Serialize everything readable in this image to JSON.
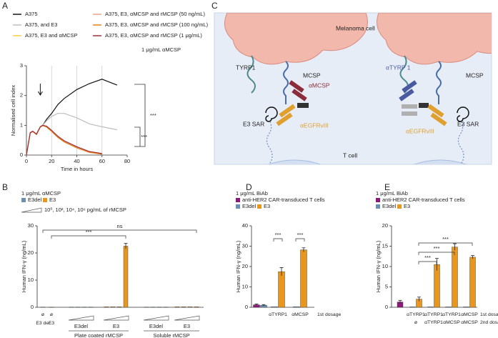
{
  "chart_data": [
    {
      "type": "line",
      "panel": "A",
      "ylabel": "Normalised cell index",
      "xlabel": "Time in hours",
      "x": [
        0,
        3,
        5,
        8,
        11,
        13,
        16,
        20,
        25,
        30,
        40,
        50,
        60,
        66,
        72
      ],
      "xlim": [
        0,
        80
      ],
      "xticks": [
        0,
        20,
        40,
        60,
        80
      ],
      "ylim": [
        0,
        3
      ],
      "yticks": [
        0,
        1,
        2,
        3
      ],
      "grid": "x",
      "series": [
        {
          "name": "A375",
          "color": "#111111",
          "values": [
            0,
            0.75,
            0.8,
            0.7,
            0.95,
            1.0,
            1.2,
            1.4,
            1.7,
            1.9,
            2.2,
            2.4,
            2.55,
            2.45,
            2.35
          ]
        },
        {
          "name": "A375, and E3",
          "color": "#bdbdbd",
          "values": [
            0,
            0.75,
            0.8,
            0.7,
            0.95,
            1.0,
            1.15,
            1.3,
            1.4,
            1.4,
            1.25,
            1.05,
            0.95,
            0.9,
            0.85
          ]
        },
        {
          "name": "A375, E3 and αMCSP",
          "color": "#f2cf4a",
          "values": [
            0,
            0.75,
            0.8,
            0.7,
            0.95,
            1.0,
            0.95,
            0.8,
            0.6,
            0.45,
            0.25,
            0.1,
            0.03,
            null,
            null
          ]
        },
        {
          "name": "A375, E3, αMCSP and rMCSP (50 ng/mL)",
          "color": "#f0a58a",
          "values": [
            0,
            0.76,
            0.81,
            0.71,
            0.96,
            1.0,
            0.96,
            0.82,
            0.62,
            0.47,
            0.27,
            0.11,
            0.04,
            null,
            null
          ]
        },
        {
          "name": "A375, E3, αMCSP and rMCSP (100 ng/mL)",
          "color": "#e8821e",
          "values": [
            0,
            0.74,
            0.79,
            0.69,
            0.94,
            0.99,
            0.94,
            0.79,
            0.59,
            0.44,
            0.24,
            0.09,
            0.03,
            null,
            null
          ]
        },
        {
          "name": "A375, E3, αMCSP and rMCSP (1 μg/mL)",
          "color": "#a0303a",
          "values": [
            0,
            0.75,
            0.8,
            0.7,
            0.95,
            1.0,
            0.97,
            0.83,
            0.63,
            0.48,
            0.28,
            0.12,
            0.05,
            null,
            null
          ]
        }
      ],
      "annotations": [
        "1 μg/mL αMCSP",
        "***",
        "***"
      ]
    },
    {
      "type": "bar",
      "panel": "B",
      "subtitle": "1 μg/mL αMCSP",
      "dose_label": "10⁰, 10², 10⁴, 10⁶ pg/mL of rMCSP",
      "ylabel": "Human IFN-γ (ng/mL)",
      "ylim": [
        0,
        30
      ],
      "yticks": [
        0,
        10,
        20,
        30
      ],
      "categories": [
        "ø",
        "ø",
        null,
        null,
        null,
        null,
        null,
        null,
        null,
        null,
        null,
        null,
        null,
        null,
        null,
        null,
        null,
        null
      ],
      "category_sublabels": [
        "E3 del",
        "E3",
        null,
        null,
        null,
        null,
        null,
        null,
        null,
        null,
        null,
        null,
        null,
        null,
        null,
        null,
        null,
        null
      ],
      "x_groups": [
        "E3del",
        "E3",
        "E3del",
        "E3"
      ],
      "x_supergroups": [
        "Plate coated rMCSP",
        "Soluble rMCSP"
      ],
      "series": [
        {
          "name": "E3del",
          "color": "#6b8fb5",
          "values": [
            0.1,
            null,
            0.1,
            0.1,
            0.1,
            0.1,
            null,
            null,
            null,
            null,
            0.1,
            0.1,
            0.1,
            0.1,
            null,
            null,
            null,
            null
          ],
          "errors": [
            null,
            null,
            null,
            null,
            null,
            null,
            null,
            null,
            null,
            null,
            null,
            null,
            null,
            null,
            null,
            null,
            null,
            null
          ]
        },
        {
          "name": "E3",
          "color": "#e8961e",
          "values": [
            null,
            0.1,
            null,
            null,
            null,
            null,
            0.2,
            0.2,
            0.2,
            22.5,
            null,
            null,
            null,
            null,
            0.2,
            0.2,
            0.2,
            0.2
          ],
          "errors": [
            null,
            null,
            null,
            null,
            null,
            null,
            null,
            null,
            null,
            1.0,
            null,
            null,
            null,
            null,
            null,
            null,
            null,
            null
          ]
        }
      ],
      "significance": [
        "***",
        "ns"
      ]
    },
    {
      "type": "bar",
      "panel": "D",
      "subtitle": "1 μg/mL BiAb",
      "ylabel": "Human IFN-γ (ng/mL)",
      "ylim": [
        0,
        40
      ],
      "yticks": [
        0,
        10,
        20,
        30,
        40
      ],
      "categories": [
        null,
        "αTYRP1",
        "αMCSP"
      ],
      "dosage_labels": [
        "1st dosage"
      ],
      "series": [
        {
          "name": "anti-HER2 CAR-transduced T cells",
          "color": "#8b1a7a",
          "values": [
            1.2,
            null,
            null
          ],
          "errors": [
            0.4,
            null,
            null
          ]
        },
        {
          "name": "E3del",
          "color": "#6b8fb5",
          "values": [
            1.0,
            0.3,
            0.3
          ],
          "errors": [
            0.3,
            null,
            null
          ]
        },
        {
          "name": "E3",
          "color": "#e8961e",
          "values": [
            null,
            17.5,
            28.2
          ],
          "errors": [
            null,
            2.0,
            1.0
          ]
        }
      ],
      "significance": [
        "***",
        "***"
      ]
    },
    {
      "type": "bar",
      "panel": "E",
      "subtitle": "1 μg/mL BiAb",
      "ylabel": "Human IFN-γ (ng/mL)",
      "ylim": [
        0,
        20
      ],
      "yticks": [
        0,
        5,
        10,
        15,
        20
      ],
      "categories": [
        null,
        "αTYRP1",
        "αTYRP1",
        "αTYRP1",
        "αMCSP"
      ],
      "categories_row2": [
        null,
        "ø",
        "αTYRP1",
        "αMCSP",
        "αMCSP"
      ],
      "dosage_labels": [
        "1st dosage",
        "2nd dosage"
      ],
      "series": [
        {
          "name": "anti-HER2 CAR-transduced T cells",
          "color": "#8b1a7a",
          "values": [
            1.3,
            null,
            null,
            null,
            null
          ],
          "errors": [
            0.4,
            null,
            null,
            null,
            null
          ]
        },
        {
          "name": "E3del",
          "color": "#6b8fb5",
          "values": [
            null,
            0.1,
            0.1,
            0.1,
            0.1
          ],
          "errors": [
            null,
            null,
            null,
            null,
            null
          ]
        },
        {
          "name": "E3",
          "color": "#e8961e",
          "values": [
            null,
            2.0,
            10.5,
            14.8,
            12.3
          ],
          "errors": [
            null,
            0.5,
            1.5,
            0.8,
            0.4
          ]
        }
      ],
      "significance": [
        "***",
        "***",
        "***"
      ]
    }
  ],
  "diagram": {
    "panel": "C",
    "cell_top": "Melanoma cell",
    "cell_bottom": "T cell",
    "left": {
      "receptor1": "TYRP1",
      "receptor2": "MCSP",
      "binder_top": "αMCSP",
      "binder_bottom": "αEGFRvIII",
      "sar": "E3 SAR"
    },
    "right": {
      "receptor1": "αTYRP 1",
      "receptor2": "MCSP",
      "binder_bottom": "αEGFRvIII",
      "sar": "E3 SAR"
    }
  }
}
